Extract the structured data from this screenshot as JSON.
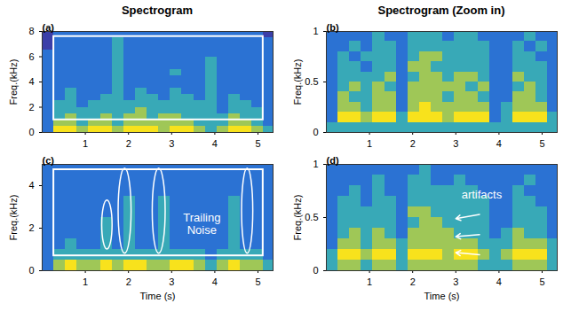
{
  "chart_data": [
    {
      "type": "heatmap",
      "title": "Spectrogram",
      "panel_label": "(a)",
      "y_label": "Freq.(kHz)",
      "xlim": [
        0,
        5.35
      ],
      "xticks": [
        1,
        2,
        3,
        4,
        5
      ],
      "ylim": [
        0,
        8
      ],
      "yticks": [
        0,
        2,
        4,
        6,
        8
      ],
      "color_range": [
        0,
        4
      ],
      "t_bins": [
        0,
        0.27,
        0.54,
        0.81,
        1.08,
        1.35,
        1.62,
        1.89,
        2.16,
        2.43,
        2.7,
        2.97,
        3.24,
        3.51,
        3.78,
        4.05,
        4.32,
        4.59,
        4.86,
        5.13,
        5.35
      ],
      "f_bins": [
        0,
        0.5,
        1,
        1.5,
        2,
        2.5,
        3,
        3.5,
        4,
        4.5,
        5,
        5.5,
        6,
        6.5,
        7,
        7.5,
        8
      ],
      "cells": [
        [
          1,
          4,
          4,
          3,
          4,
          4,
          3,
          4,
          4,
          4,
          3,
          4,
          4,
          3,
          2,
          3,
          4,
          4,
          3,
          2
        ],
        [
          1,
          3,
          3,
          2,
          3,
          3,
          2,
          3,
          3,
          3,
          3,
          3,
          3,
          2,
          2,
          2,
          3,
          3,
          2,
          1
        ],
        [
          1,
          2,
          3,
          2,
          2,
          3,
          2,
          3,
          3,
          2,
          3,
          3,
          2,
          2,
          2,
          2,
          3,
          2,
          2,
          1
        ],
        [
          1,
          2,
          2,
          2,
          2,
          2,
          2,
          2,
          3,
          2,
          2,
          2,
          2,
          2,
          2,
          1,
          2,
          2,
          2,
          1
        ],
        [
          1,
          2,
          2,
          1,
          2,
          2,
          2,
          2,
          2,
          2,
          2,
          2,
          2,
          2,
          2,
          1,
          2,
          2,
          1,
          1
        ],
        [
          1,
          1,
          2,
          1,
          1,
          2,
          2,
          1,
          2,
          2,
          1,
          2,
          2,
          1,
          2,
          1,
          2,
          1,
          1,
          1
        ],
        [
          1,
          1,
          2,
          1,
          1,
          1,
          2,
          1,
          2,
          1,
          1,
          2,
          1,
          1,
          2,
          1,
          1,
          1,
          1,
          1
        ],
        [
          1,
          1,
          1,
          1,
          1,
          1,
          2,
          1,
          1,
          1,
          1,
          1,
          1,
          1,
          2,
          1,
          1,
          1,
          1,
          1
        ],
        [
          1,
          1,
          1,
          1,
          1,
          1,
          2,
          1,
          1,
          1,
          1,
          1,
          1,
          1,
          2,
          1,
          1,
          1,
          1,
          1
        ],
        [
          1,
          1,
          1,
          1,
          1,
          1,
          2,
          1,
          1,
          1,
          1,
          2,
          1,
          1,
          2,
          1,
          1,
          1,
          1,
          1
        ],
        [
          1,
          1,
          1,
          1,
          1,
          1,
          2,
          1,
          1,
          1,
          1,
          1,
          1,
          1,
          2,
          1,
          1,
          1,
          1,
          1
        ],
        [
          1,
          1,
          1,
          1,
          1,
          1,
          2,
          1,
          1,
          1,
          1,
          1,
          1,
          1,
          2,
          1,
          1,
          1,
          1,
          1
        ],
        [
          1,
          1,
          1,
          1,
          1,
          1,
          2,
          1,
          1,
          1,
          1,
          1,
          1,
          1,
          1,
          1,
          1,
          1,
          1,
          1
        ],
        [
          0,
          1,
          1,
          1,
          1,
          1,
          2,
          1,
          1,
          1,
          1,
          1,
          1,
          1,
          1,
          1,
          1,
          1,
          1,
          1
        ],
        [
          0,
          1,
          1,
          1,
          1,
          1,
          2,
          1,
          1,
          1,
          1,
          1,
          1,
          1,
          1,
          1,
          1,
          1,
          1,
          1
        ],
        [
          0,
          1,
          1,
          1,
          1,
          1,
          1,
          1,
          1,
          1,
          1,
          1,
          1,
          1,
          1,
          1,
          1,
          1,
          1,
          0
        ]
      ],
      "boxes": [
        {
          "x": [
            0.27,
            5.12
          ],
          "y": [
            1.0,
            7.6
          ]
        }
      ]
    },
    {
      "type": "heatmap",
      "title": "Spectrogram (Zoom in)",
      "panel_label": "(b)",
      "y_label": "Freq.(kHz)",
      "xlim": [
        0,
        5.35
      ],
      "xticks": [
        1,
        2,
        3,
        4,
        5
      ],
      "ylim": [
        0,
        1
      ],
      "yticks": [
        0,
        0.5,
        1
      ],
      "color_range": [
        0,
        4
      ],
      "t_bins": [
        0,
        0.27,
        0.54,
        0.81,
        1.08,
        1.35,
        1.62,
        1.89,
        2.16,
        2.43,
        2.7,
        2.97,
        3.24,
        3.51,
        3.78,
        4.05,
        4.32,
        4.59,
        4.86,
        5.13,
        5.35
      ],
      "f_bins": [
        0,
        0.1,
        0.2,
        0.3,
        0.4,
        0.5,
        0.6,
        0.7,
        0.8,
        0.9,
        1
      ],
      "cells": [
        [
          2,
          2,
          2,
          2,
          2,
          2,
          2,
          2,
          2,
          2,
          2,
          2,
          2,
          2,
          2,
          2,
          2,
          2,
          2,
          2
        ],
        [
          1,
          4,
          4,
          3,
          4,
          4,
          2,
          4,
          4,
          4,
          3,
          4,
          4,
          4,
          1,
          2,
          4,
          4,
          4,
          2
        ],
        [
          1,
          3,
          3,
          2,
          3,
          3,
          1,
          3,
          4,
          3,
          3,
          3,
          3,
          3,
          1,
          2,
          3,
          3,
          3,
          1
        ],
        [
          1,
          3,
          2,
          2,
          3,
          3,
          1,
          3,
          3,
          3,
          2,
          3,
          3,
          2,
          1,
          1,
          3,
          3,
          2,
          1
        ],
        [
          1,
          2,
          3,
          2,
          3,
          2,
          1,
          3,
          3,
          3,
          3,
          3,
          2,
          3,
          1,
          1,
          2,
          3,
          2,
          1
        ],
        [
          1,
          2,
          2,
          2,
          2,
          3,
          1,
          2,
          3,
          3,
          2,
          3,
          3,
          2,
          1,
          1,
          3,
          2,
          2,
          1
        ],
        [
          1,
          2,
          2,
          1,
          2,
          2,
          1,
          3,
          3,
          2,
          2,
          2,
          2,
          2,
          1,
          1,
          2,
          2,
          2,
          1
        ],
        [
          1,
          2,
          1,
          2,
          2,
          2,
          1,
          2,
          3,
          3,
          2,
          2,
          2,
          2,
          1,
          1,
          2,
          2,
          1,
          1
        ],
        [
          1,
          1,
          2,
          1,
          2,
          2,
          1,
          2,
          2,
          2,
          2,
          2,
          2,
          2,
          1,
          1,
          2,
          1,
          2,
          1
        ],
        [
          1,
          1,
          1,
          1,
          2,
          1,
          1,
          2,
          2,
          2,
          1,
          2,
          2,
          1,
          1,
          1,
          1,
          2,
          1,
          1
        ]
      ]
    },
    {
      "type": "heatmap",
      "panel_label": "(c)",
      "x_label": "Time (s)",
      "y_label": "Freq.(kHz)",
      "xlim": [
        0,
        5.35
      ],
      "xticks": [
        1,
        2,
        3,
        4,
        5
      ],
      "ylim": [
        0,
        5
      ],
      "yticks": [
        0,
        2,
        4
      ],
      "color_range": [
        0,
        4
      ],
      "t_bins": [
        0,
        0.27,
        0.54,
        0.81,
        1.08,
        1.35,
        1.62,
        1.89,
        2.16,
        2.43,
        2.7,
        2.97,
        3.24,
        3.51,
        3.78,
        4.05,
        4.32,
        4.59,
        4.86,
        5.13,
        5.35
      ],
      "f_bins": [
        0,
        0.5,
        1,
        1.5,
        2,
        2.5,
        3,
        3.5,
        4,
        4.5,
        5
      ],
      "cells": [
        [
          1,
          3,
          4,
          3,
          3,
          4,
          3,
          4,
          4,
          3,
          3,
          4,
          4,
          3,
          2,
          3,
          4,
          3,
          3,
          2
        ],
        [
          1,
          2,
          2,
          2,
          2,
          2,
          2,
          2,
          2,
          2,
          2,
          2,
          2,
          2,
          1,
          2,
          2,
          2,
          2,
          1
        ],
        [
          1,
          1,
          2,
          1,
          1,
          2,
          1,
          2,
          1,
          1,
          2,
          1,
          1,
          1,
          1,
          1,
          2,
          1,
          1,
          1
        ],
        [
          1,
          1,
          1,
          1,
          1,
          2,
          1,
          2,
          1,
          1,
          2,
          1,
          1,
          1,
          1,
          1,
          2,
          1,
          1,
          1
        ],
        [
          1,
          1,
          1,
          1,
          1,
          2,
          1,
          2,
          1,
          1,
          2,
          1,
          1,
          1,
          1,
          1,
          2,
          1,
          1,
          1
        ],
        [
          1,
          1,
          1,
          1,
          1,
          1,
          1,
          2,
          1,
          1,
          2,
          1,
          1,
          1,
          1,
          1,
          2,
          1,
          1,
          1
        ],
        [
          1,
          1,
          1,
          1,
          1,
          1,
          1,
          2,
          1,
          1,
          2,
          1,
          1,
          1,
          1,
          1,
          2,
          1,
          1,
          1
        ],
        [
          1,
          1,
          1,
          1,
          1,
          1,
          1,
          1,
          1,
          1,
          1,
          1,
          1,
          1,
          1,
          1,
          1,
          1,
          1,
          1
        ],
        [
          1,
          1,
          1,
          1,
          1,
          1,
          1,
          1,
          1,
          1,
          1,
          1,
          1,
          1,
          1,
          1,
          1,
          1,
          1,
          1
        ],
        [
          1,
          1,
          1,
          1,
          1,
          1,
          1,
          1,
          1,
          1,
          1,
          1,
          1,
          1,
          1,
          1,
          1,
          1,
          1,
          1
        ]
      ],
      "boxes": [
        {
          "x": [
            0.27,
            5.12
          ],
          "y": [
            0.7,
            4.75
          ]
        }
      ],
      "ellipses": [
        {
          "cx": 1.51,
          "cy": 2.15,
          "rx": 0.12,
          "ry": 1.15
        },
        {
          "cx": 1.92,
          "cy": 2.8,
          "rx": 0.15,
          "ry": 2.0
        },
        {
          "cx": 2.71,
          "cy": 2.8,
          "rx": 0.15,
          "ry": 2.0
        },
        {
          "cx": 4.76,
          "cy": 2.8,
          "rx": 0.13,
          "ry": 2.0
        }
      ],
      "annotations": [
        {
          "text": "Trailing Noise",
          "x": 3.7,
          "y": 2.2
        }
      ]
    },
    {
      "type": "heatmap",
      "panel_label": "(d)",
      "x_label": "Time (s)",
      "y_label": "Freq.(kHz)",
      "xlim": [
        0,
        5.35
      ],
      "xticks": [
        1,
        2,
        3,
        4,
        5
      ],
      "ylim": [
        0,
        1
      ],
      "yticks": [
        0,
        0.5,
        1
      ],
      "color_range": [
        0,
        4
      ],
      "t_bins": [
        0,
        0.27,
        0.54,
        0.81,
        1.08,
        1.35,
        1.62,
        1.89,
        2.16,
        2.43,
        2.7,
        2.97,
        3.24,
        3.51,
        3.78,
        4.05,
        4.32,
        4.59,
        4.86,
        5.13,
        5.35
      ],
      "f_bins": [
        0,
        0.1,
        0.2,
        0.3,
        0.4,
        0.5,
        0.6,
        0.7,
        0.8,
        0.9,
        1
      ],
      "cells": [
        [
          2,
          3,
          3,
          2,
          3,
          3,
          2,
          3,
          3,
          3,
          3,
          3,
          3,
          2,
          2,
          2,
          3,
          3,
          3,
          2
        ],
        [
          2,
          4,
          4,
          3,
          4,
          4,
          2,
          4,
          4,
          4,
          3,
          4,
          4,
          3,
          2,
          3,
          4,
          4,
          4,
          2
        ],
        [
          1,
          3,
          3,
          2,
          3,
          3,
          2,
          3,
          3,
          3,
          3,
          3,
          3,
          2,
          2,
          2,
          3,
          3,
          3,
          2
        ],
        [
          1,
          2,
          3,
          2,
          3,
          2,
          1,
          3,
          3,
          3,
          3,
          2,
          2,
          2,
          1,
          2,
          3,
          2,
          2,
          1
        ],
        [
          1,
          2,
          2,
          2,
          2,
          2,
          1,
          2,
          3,
          3,
          2,
          2,
          2,
          2,
          1,
          1,
          2,
          2,
          2,
          1
        ],
        [
          1,
          2,
          2,
          2,
          2,
          2,
          1,
          3,
          3,
          2,
          2,
          2,
          2,
          2,
          1,
          1,
          2,
          2,
          2,
          1
        ],
        [
          1,
          2,
          2,
          1,
          2,
          2,
          1,
          2,
          2,
          2,
          2,
          2,
          2,
          2,
          1,
          1,
          2,
          2,
          1,
          1
        ],
        [
          1,
          1,
          2,
          1,
          2,
          1,
          1,
          2,
          2,
          2,
          2,
          2,
          2,
          1,
          1,
          1,
          2,
          1,
          1,
          1
        ],
        [
          1,
          1,
          1,
          1,
          2,
          1,
          1,
          2,
          2,
          1,
          1,
          2,
          1,
          1,
          1,
          1,
          1,
          2,
          1,
          1
        ],
        [
          1,
          1,
          1,
          1,
          1,
          1,
          1,
          1,
          2,
          1,
          1,
          1,
          1,
          1,
          1,
          1,
          1,
          1,
          1,
          1
        ]
      ],
      "annotations": [
        {
          "text": "artifacts",
          "x": 3.6,
          "y": 0.72
        }
      ],
      "arrows": [
        {
          "x1": 3.55,
          "y1": 0.53,
          "x2": 3.0,
          "y2": 0.49
        },
        {
          "x1": 3.55,
          "y1": 0.34,
          "x2": 3.0,
          "y2": 0.32
        },
        {
          "x1": 3.55,
          "y1": 0.15,
          "x2": 3.0,
          "y2": 0.17
        }
      ]
    }
  ]
}
